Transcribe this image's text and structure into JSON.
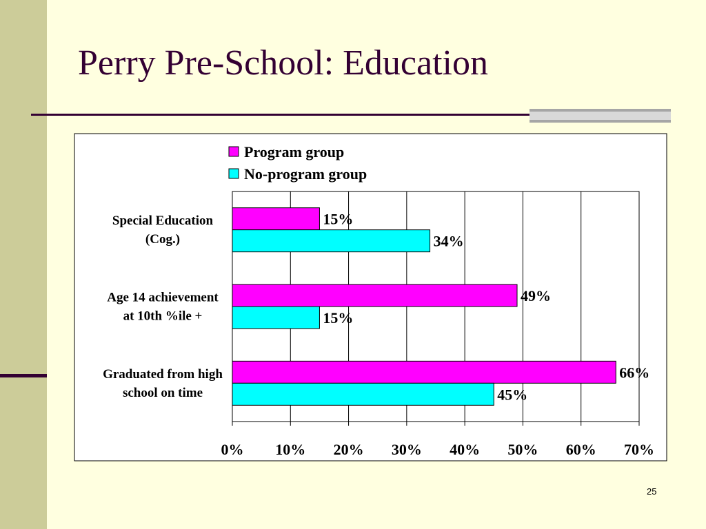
{
  "slide": {
    "title": "Perry Pre-School: Education",
    "page_number": "25"
  },
  "colors": {
    "background": "#FFFFE0",
    "side_band": "#CCCC99",
    "title_text": "#330033",
    "accent_line": "#330033",
    "program": "#FF00FF",
    "no_program": "#00FFFF"
  },
  "chart_data": {
    "type": "bar",
    "orientation": "horizontal",
    "categories": [
      [
        "Special Education",
        "(Cog.)"
      ],
      [
        "Age 14 achievement",
        "at 10th %ile +"
      ],
      [
        "Graduated from high",
        "school on time"
      ]
    ],
    "series": [
      {
        "name": "Program group",
        "color": "#FF00FF",
        "values": [
          15,
          49,
          66
        ]
      },
      {
        "name": "No-program group",
        "color": "#00FFFF",
        "values": [
          34,
          15,
          45
        ]
      }
    ],
    "xlim": [
      0,
      70
    ],
    "ticks": [
      0,
      10,
      20,
      30,
      40,
      50,
      60,
      70
    ],
    "tick_format": "percent",
    "value_labels": true,
    "grid": "vertical",
    "legend_position": "top-center"
  }
}
